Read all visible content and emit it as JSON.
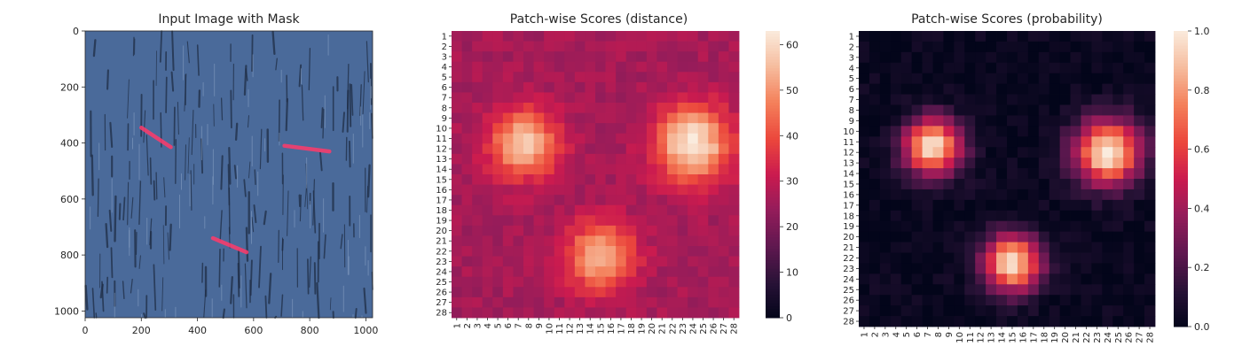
{
  "figure": {
    "panels": [
      {
        "title": "Input Image with Mask",
        "x_ticks": [
          "0",
          "200",
          "400",
          "600",
          "800",
          "1000"
        ],
        "y_ticks": [
          "0",
          "200",
          "400",
          "600",
          "800",
          "1000"
        ],
        "xlim": [
          0,
          1024
        ],
        "ylim": [
          1024,
          0
        ],
        "background_color": "#4a6a9a",
        "mask_color": "#ff3a6a"
      },
      {
        "title": "Patch-wise Scores (distance)",
        "colorbar_ticks": [
          "0",
          "10",
          "20",
          "30",
          "40",
          "50",
          "60"
        ],
        "colorbar_range": [
          0,
          63
        ]
      },
      {
        "title": "Patch-wise Scores (probability)",
        "colorbar_ticks": [
          "0.0",
          "0.2",
          "0.4",
          "0.6",
          "0.8",
          "1.0"
        ],
        "colorbar_range": [
          0,
          1
        ]
      }
    ]
  },
  "chart_data": [
    {
      "type": "image",
      "title": "Input Image with Mask",
      "xlim": [
        0,
        1024
      ],
      "ylim": [
        1024,
        0
      ],
      "defects": [
        {
          "x": [
            200,
            305
          ],
          "y": [
            345,
            415
          ]
        },
        {
          "x": [
            710,
            870
          ],
          "y": [
            410,
            430
          ]
        },
        {
          "x": [
            455,
            575
          ],
          "y": [
            740,
            790
          ]
        }
      ]
    },
    {
      "type": "heatmap",
      "title": "Patch-wise Scores (distance)",
      "rows": 28,
      "cols": 28,
      "categories": [
        "1",
        "2",
        "3",
        "4",
        "5",
        "6",
        "7",
        "8",
        "9",
        "10",
        "11",
        "12",
        "13",
        "14",
        "15",
        "16",
        "17",
        "18",
        "19",
        "20",
        "21",
        "22",
        "23",
        "24",
        "25",
        "26",
        "27",
        "28"
      ],
      "vmin": 0,
      "vmax": 63,
      "background": 26,
      "blobs": [
        {
          "row": 11.5,
          "col": 7.5,
          "peak": 57,
          "sigma": 2.3
        },
        {
          "row": 11.5,
          "col": 24.0,
          "peak": 63,
          "sigma": 2.5
        },
        {
          "row": 22.5,
          "col": 15.0,
          "peak": 55,
          "sigma": 2.3
        }
      ]
    },
    {
      "type": "heatmap",
      "title": "Patch-wise Scores (probability)",
      "rows": 28,
      "cols": 28,
      "categories": [
        "1",
        "2",
        "3",
        "4",
        "5",
        "6",
        "7",
        "8",
        "9",
        "10",
        "11",
        "12",
        "13",
        "14",
        "15",
        "16",
        "17",
        "18",
        "19",
        "20",
        "21",
        "22",
        "23",
        "24",
        "25",
        "26",
        "27",
        "28"
      ],
      "vmin": 0,
      "vmax": 1,
      "background": 0.02,
      "blobs": [
        {
          "row": 11.5,
          "col": 7.5,
          "peak": 0.98,
          "sigma": 1.9
        },
        {
          "row": 12.0,
          "col": 24.0,
          "peak": 1.0,
          "sigma": 2.2
        },
        {
          "row": 22.5,
          "col": 15.0,
          "peak": 0.98,
          "sigma": 1.9
        }
      ]
    }
  ]
}
